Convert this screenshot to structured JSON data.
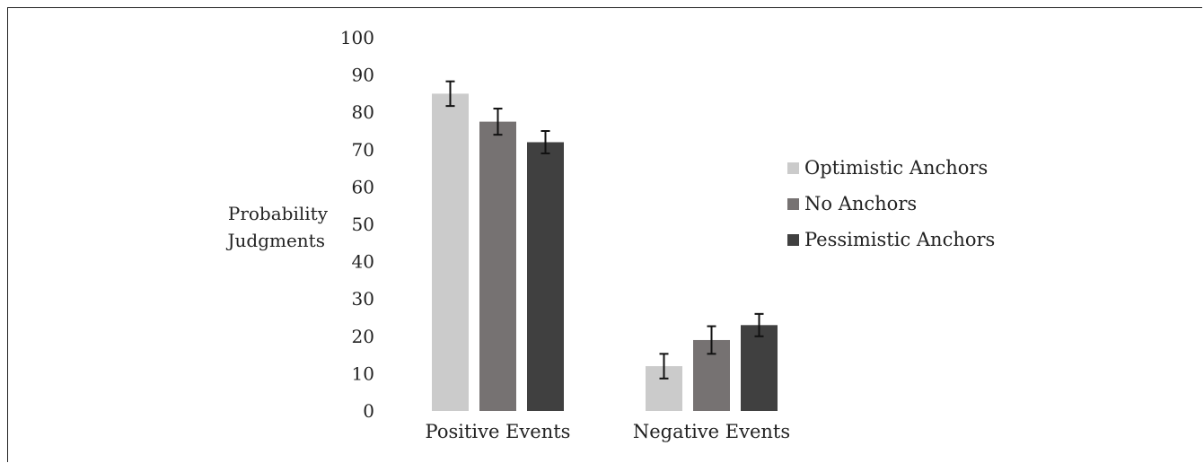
{
  "chart_data": {
    "type": "bar",
    "title": "",
    "xlabel": "",
    "ylabel": [
      "Probability",
      "Judgments"
    ],
    "ylim": [
      0,
      100
    ],
    "yticks": [
      0,
      10,
      20,
      30,
      40,
      50,
      60,
      70,
      80,
      90,
      100
    ],
    "grid": false,
    "legend_position": "right",
    "categories": [
      "Positive Events",
      "Negative Events"
    ],
    "series": [
      {
        "name": "Optimistic Anchors",
        "color": "#cbcbcb",
        "values": [
          85,
          12
        ],
        "error": [
          3.3,
          3.3
        ]
      },
      {
        "name": "No Anchors",
        "color": "#767272",
        "values": [
          77.5,
          19
        ],
        "error": [
          3.5,
          3.7
        ]
      },
      {
        "name": "Pessimistic Anchors",
        "color": "#404040",
        "values": [
          72,
          23
        ],
        "error": [
          3.0,
          3.0
        ]
      }
    ]
  }
}
